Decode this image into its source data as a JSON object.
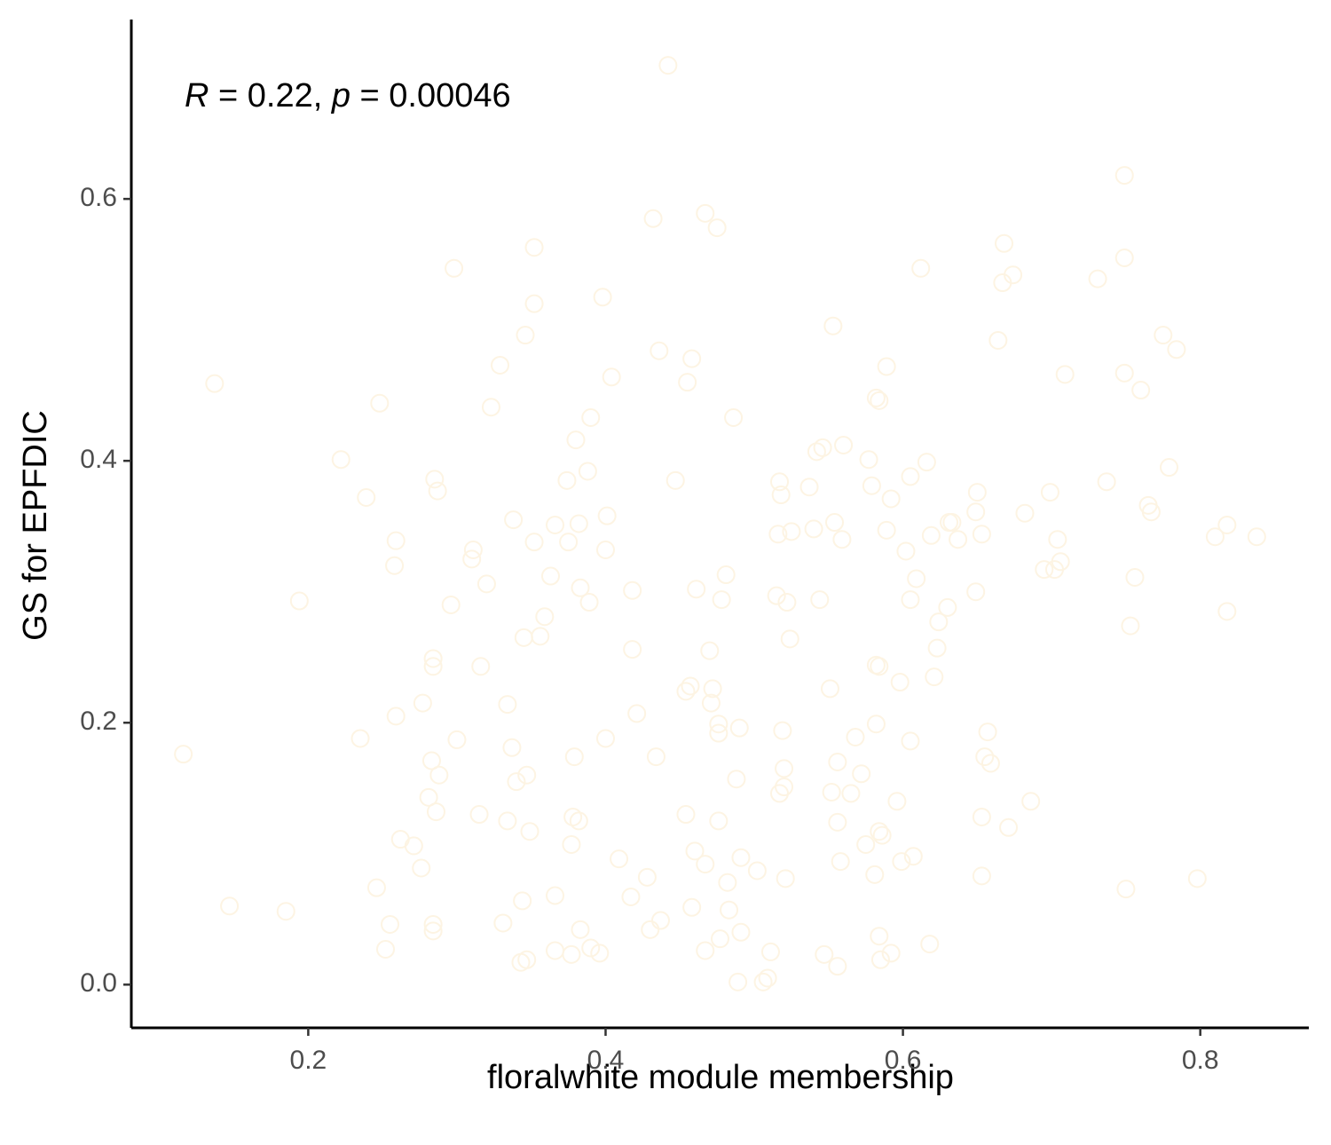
{
  "chart_data": {
    "type": "scatter",
    "x_label": "floralwhite module membership",
    "y_label": "GS for EPFDIC",
    "annotation": [
      {
        "text": "R",
        "italic": true
      },
      {
        "text": " = 0.22, "
      },
      {
        "text": "p",
        "italic": true
      },
      {
        "text": " = 0.00046"
      }
    ],
    "color": "#fdf4e3",
    "xlim": [
      0.081,
      0.873
    ],
    "ylim": [
      -0.033,
      0.737
    ],
    "xticks": [
      0.2,
      0.4,
      0.6,
      0.8
    ],
    "yticks": [
      {
        "value": 0,
        "label": "0.0"
      },
      0.2,
      0.4,
      0.6
    ],
    "x": [
      0.442,
      0.749,
      0.432,
      0.467,
      0.475,
      0.352,
      0.298,
      0.352,
      0.398,
      0.346,
      0.329,
      0.436,
      0.458,
      0.404,
      0.455,
      0.137,
      0.248,
      0.323,
      0.39,
      0.486,
      0.38,
      0.553,
      0.612,
      0.668,
      0.674,
      0.667,
      0.731,
      0.749,
      0.664,
      0.775,
      0.784,
      0.709,
      0.749,
      0.76,
      0.589,
      0.582,
      0.584,
      0.222,
      0.239,
      0.285,
      0.287,
      0.374,
      0.388,
      0.447,
      0.338,
      0.366,
      0.382,
      0.401,
      0.259,
      0.258,
      0.352,
      0.375,
      0.311,
      0.31,
      0.4,
      0.363,
      0.32,
      0.194,
      0.296,
      0.383,
      0.389,
      0.418,
      0.359,
      0.345,
      0.356,
      0.418,
      0.284,
      0.284,
      0.316,
      0.277,
      0.259,
      0.334,
      0.235,
      0.3,
      0.337,
      0.116,
      0.283,
      0.288,
      0.34,
      0.347,
      0.379,
      0.281,
      0.286,
      0.315,
      0.334,
      0.349,
      0.378,
      0.382,
      0.377,
      0.262,
      0.271,
      0.276,
      0.246,
      0.147,
      0.185,
      0.255,
      0.284,
      0.284,
      0.252,
      0.331,
      0.344,
      0.366,
      0.383,
      0.366,
      0.377,
      0.39,
      0.396,
      0.343,
      0.347,
      0.409,
      0.417,
      0.428,
      0.43,
      0.437,
      0.458,
      0.4,
      0.421,
      0.434,
      0.454,
      0.457,
      0.472,
      0.471,
      0.47,
      0.461,
      0.481,
      0.478,
      0.476,
      0.476,
      0.49,
      0.488,
      0.454,
      0.476,
      0.46,
      0.467,
      0.491,
      0.502,
      0.482,
      0.483,
      0.477,
      0.491,
      0.467,
      0.511,
      0.489,
      0.506,
      0.509,
      0.547,
      0.556,
      0.517,
      0.518,
      0.537,
      0.542,
      0.546,
      0.56,
      0.577,
      0.554,
      0.559,
      0.516,
      0.525,
      0.54,
      0.579,
      0.592,
      0.589,
      0.605,
      0.616,
      0.602,
      0.609,
      0.619,
      0.605,
      0.624,
      0.63,
      0.631,
      0.633,
      0.637,
      0.649,
      0.65,
      0.653,
      0.649,
      0.682,
      0.699,
      0.704,
      0.695,
      0.702,
      0.706,
      0.737,
      0.779,
      0.765,
      0.767,
      0.756,
      0.753,
      0.818,
      0.81,
      0.818,
      0.838,
      0.515,
      0.522,
      0.544,
      0.524,
      0.582,
      0.584,
      0.598,
      0.623,
      0.621,
      0.551,
      0.519,
      0.52,
      0.52,
      0.517,
      0.556,
      0.568,
      0.572,
      0.582,
      0.552,
      0.565,
      0.556,
      0.605,
      0.596,
      0.521,
      0.558,
      0.575,
      0.584,
      0.586,
      0.581,
      0.599,
      0.607,
      0.584,
      0.585,
      0.592,
      0.618,
      0.657,
      0.655,
      0.659,
      0.653,
      0.671,
      0.686,
      0.653,
      0.75,
      0.798
    ],
    "values": [
      0.702,
      0.618,
      0.585,
      0.589,
      0.578,
      0.563,
      0.547,
      0.52,
      0.525,
      0.496,
      0.473,
      0.484,
      0.478,
      0.464,
      0.46,
      0.459,
      0.444,
      0.441,
      0.433,
      0.433,
      0.416,
      0.503,
      0.547,
      0.566,
      0.542,
      0.536,
      0.539,
      0.555,
      0.492,
      0.496,
      0.485,
      0.466,
      0.467,
      0.454,
      0.472,
      0.448,
      0.446,
      0.401,
      0.372,
      0.386,
      0.377,
      0.385,
      0.392,
      0.385,
      0.355,
      0.351,
      0.352,
      0.358,
      0.339,
      0.32,
      0.338,
      0.338,
      0.332,
      0.325,
      0.332,
      0.312,
      0.306,
      0.293,
      0.29,
      0.303,
      0.292,
      0.301,
      0.281,
      0.265,
      0.266,
      0.256,
      0.249,
      0.243,
      0.243,
      0.215,
      0.205,
      0.214,
      0.188,
      0.187,
      0.181,
      0.176,
      0.171,
      0.16,
      0.155,
      0.16,
      0.174,
      0.143,
      0.132,
      0.13,
      0.125,
      0.117,
      0.128,
      0.125,
      0.107,
      0.111,
      0.106,
      0.089,
      0.074,
      0.06,
      0.056,
      0.046,
      0.046,
      0.041,
      0.027,
      0.047,
      0.064,
      0.068,
      0.042,
      0.026,
      0.023,
      0.028,
      0.024,
      0.017,
      0.019,
      0.096,
      0.067,
      0.082,
      0.042,
      0.049,
      0.059,
      0.188,
      0.207,
      0.174,
      0.224,
      0.228,
      0.226,
      0.215,
      0.255,
      0.302,
      0.313,
      0.294,
      0.199,
      0.192,
      0.196,
      0.157,
      0.13,
      0.125,
      0.102,
      0.092,
      0.097,
      0.087,
      0.078,
      0.057,
      0.035,
      0.04,
      0.026,
      0.025,
      0.002,
      0.002,
      0.005,
      0.023,
      0.014,
      0.384,
      0.374,
      0.38,
      0.407,
      0.41,
      0.412,
      0.401,
      0.353,
      0.34,
      0.344,
      0.346,
      0.348,
      0.381,
      0.371,
      0.347,
      0.388,
      0.399,
      0.331,
      0.31,
      0.343,
      0.294,
      0.277,
      0.288,
      0.353,
      0.353,
      0.34,
      0.361,
      0.376,
      0.344,
      0.3,
      0.36,
      0.376,
      0.34,
      0.317,
      0.317,
      0.323,
      0.384,
      0.395,
      0.366,
      0.361,
      0.311,
      0.274,
      0.285,
      0.342,
      0.351,
      0.342,
      0.297,
      0.292,
      0.294,
      0.264,
      0.244,
      0.243,
      0.231,
      0.257,
      0.235,
      0.226,
      0.194,
      0.165,
      0.151,
      0.146,
      0.17,
      0.189,
      0.161,
      0.199,
      0.147,
      0.146,
      0.124,
      0.186,
      0.14,
      0.081,
      0.094,
      0.107,
      0.117,
      0.114,
      0.084,
      0.094,
      0.098,
      0.037,
      0.019,
      0.024,
      0.031,
      0.193,
      0.174,
      0.169,
      0.128,
      0.12,
      0.14,
      0.083,
      0.073,
      0.081
    ]
  }
}
